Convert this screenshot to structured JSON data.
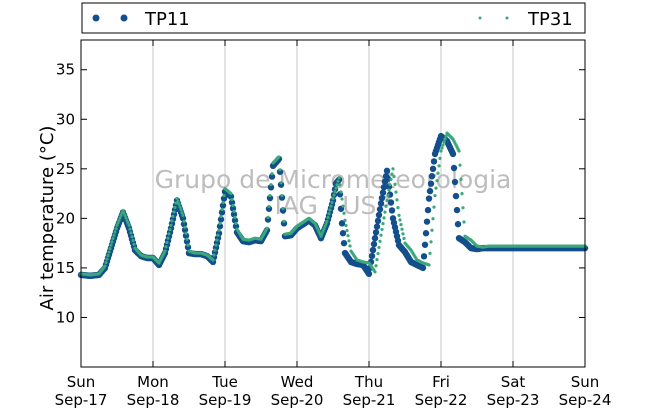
{
  "chart_data": {
    "type": "scatter",
    "ylabel": "Air temperature (°C)",
    "ylim": [
      5,
      38
    ],
    "yticks": [
      10,
      15,
      20,
      25,
      30,
      35
    ],
    "xlim": [
      "2023-09-17 00:00",
      "2023-09-24 00:00"
    ],
    "xticks": [
      {
        "day": "Sun",
        "date": "Sep-17"
      },
      {
        "day": "Mon",
        "date": "Sep-18"
      },
      {
        "day": "Tue",
        "date": "Sep-19"
      },
      {
        "day": "Wed",
        "date": "Sep-20"
      },
      {
        "day": "Thu",
        "date": "Sep-21"
      },
      {
        "day": "Fri",
        "date": "Sep-22"
      },
      {
        "day": "Sat",
        "date": "Sep-23"
      },
      {
        "day": "Sun",
        "date": "Sep-24"
      }
    ],
    "grid": "vertical",
    "legend_position": "top",
    "watermark": [
      "Grupo de Micrometeorologia",
      "IAG / USP"
    ],
    "series": [
      {
        "name": "TP11",
        "color": "#134f8c",
        "marker": "large-dot",
        "x_hours": [
          0,
          3,
          6,
          8,
          10,
          12,
          14,
          16,
          18,
          20,
          22,
          24,
          26,
          28,
          30,
          32,
          34,
          36,
          38,
          40,
          42,
          44,
          46,
          48,
          50,
          52,
          54,
          56,
          58,
          60,
          62,
          64,
          66,
          68,
          70,
          72,
          74,
          76,
          78,
          80,
          82,
          84,
          85,
          86,
          87,
          88,
          90,
          92,
          94,
          96,
          98,
          100,
          102,
          104,
          106,
          108,
          110,
          112,
          114,
          116,
          118,
          120,
          122,
          124,
          126,
          128,
          130,
          132,
          134,
          136,
          138,
          140,
          142,
          144,
          146,
          148,
          150,
          152,
          154,
          156,
          158,
          160,
          162,
          163,
          164,
          166,
          168
        ],
        "y": [
          14.3,
          14.2,
          14.3,
          15.0,
          17.0,
          19.0,
          20.6,
          19.0,
          16.8,
          16.2,
          16.0,
          16.0,
          15.3,
          16.5,
          19.0,
          21.8,
          20.0,
          16.5,
          16.4,
          16.4,
          16.2,
          15.6,
          18.5,
          22.7,
          22.2,
          18.6,
          17.7,
          17.6,
          17.8,
          17.7,
          18.8,
          25.3,
          26.0,
          18.2,
          18.3,
          19.0,
          19.4,
          19.8,
          19.3,
          18.0,
          19.5,
          21.8,
          23.5,
          23.9,
          19.5,
          16.5,
          15.6,
          15.4,
          15.3,
          14.4,
          18.0,
          21.5,
          24.8,
          20.0,
          17.3,
          16.6,
          15.6,
          15.3,
          15.0,
          22.0,
          26.5,
          28.3,
          27.8,
          26.5,
          18.0,
          17.6,
          17.0,
          16.9,
          17.0,
          17.0,
          17.0,
          17.0,
          17.0,
          17.0,
          17.0,
          17.0,
          17.0,
          17.0,
          17.0,
          17.0,
          17.0,
          17.0,
          17.0,
          17.0,
          17.0,
          17.0,
          17.0
        ]
      },
      {
        "name": "TP31",
        "color": "#3aa87a",
        "marker": "small-dot",
        "x_hours": [
          0,
          3,
          6,
          8,
          10,
          12,
          14,
          16,
          18,
          20,
          22,
          24,
          26,
          28,
          30,
          32,
          34,
          36,
          38,
          40,
          42,
          44,
          46,
          48,
          50,
          52,
          54,
          56,
          58,
          60,
          62,
          64,
          66,
          68,
          70,
          72,
          74,
          76,
          78,
          80,
          82,
          84,
          86,
          88,
          90,
          92,
          94,
          96,
          98,
          100,
          102,
          104,
          106,
          108,
          110,
          112,
          114,
          116,
          118,
          120,
          122,
          124,
          126,
          128,
          130,
          132,
          134,
          136,
          138,
          140,
          142,
          144,
          146,
          148,
          150,
          152,
          154,
          156,
          158,
          160,
          162,
          164,
          166,
          168
        ],
        "y": [
          14.4,
          14.3,
          14.4,
          15.2,
          17.3,
          19.3,
          20.8,
          19.3,
          17.0,
          16.3,
          16.1,
          16.1,
          15.5,
          16.7,
          19.3,
          22.0,
          20.3,
          16.7,
          16.5,
          16.5,
          16.3,
          15.8,
          18.8,
          23.0,
          22.5,
          18.9,
          17.9,
          17.8,
          18.0,
          17.9,
          19.0,
          25.6,
          26.2,
          18.4,
          18.5,
          19.2,
          19.6,
          20.0,
          19.5,
          18.2,
          19.7,
          22.0,
          24.1,
          19.8,
          16.7,
          15.8,
          15.6,
          15.5,
          14.6,
          18.3,
          21.8,
          25.0,
          20.3,
          17.5,
          16.8,
          15.8,
          15.5,
          15.3,
          22.3,
          26.8,
          28.6,
          28.0,
          26.8,
          18.2,
          17.8,
          17.2,
          17.1,
          17.2,
          17.2,
          17.2,
          17.2,
          17.2,
          17.2,
          17.2,
          17.2,
          17.2,
          17.2,
          17.2,
          17.2,
          17.2,
          17.2,
          17.2,
          17.2,
          17.2
        ]
      }
    ]
  }
}
